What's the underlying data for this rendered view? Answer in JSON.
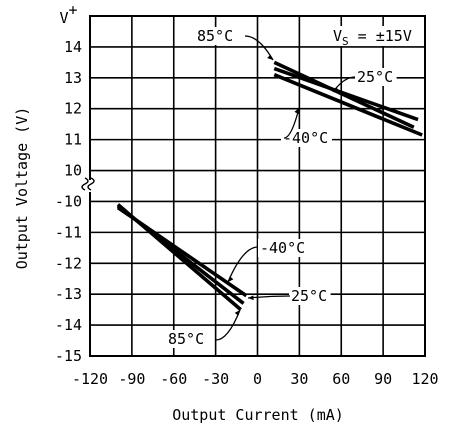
{
  "chart_data": {
    "type": "line",
    "title": "",
    "xlabel": "Output Current (mA)",
    "ylabel": "Output Voltage (V)",
    "xlim": [
      -120,
      120
    ],
    "x_ticks": [
      "-120",
      "-90",
      "-60",
      "-30",
      "0",
      "30",
      "60",
      "90",
      "120"
    ],
    "y_ticks_upper": [
      "V+",
      "14",
      "13",
      "12",
      "11",
      "10"
    ],
    "y_ticks_lower": [
      "-10",
      "-11",
      "-12",
      "-13",
      "-14",
      "-15"
    ],
    "axis_break": "between 10 and -10",
    "grid": true,
    "condition_label": "VS = ±15V",
    "condition_label_parts": {
      "prefix": "V",
      "subscript": "S",
      "suffix": " = ±15V"
    },
    "series": [
      {
        "name": "85°C",
        "segments": [
          {
            "x": [
              -100,
              -12
            ],
            "y": [
              -10.1,
              -13.5
            ]
          },
          {
            "x": [
              12,
              112
            ],
            "y": [
              13.5,
              11.4
            ]
          }
        ]
      },
      {
        "name": "25°C",
        "segments": [
          {
            "x": [
              -100,
              -10
            ],
            "y": [
              -10.15,
              -13.3
            ]
          },
          {
            "x": [
              12,
              115
            ],
            "y": [
              13.3,
              11.65
            ]
          }
        ]
      },
      {
        "name": "-40°C",
        "segments": [
          {
            "x": [
              -100,
              -8
            ],
            "y": [
              -10.2,
              -13.05
            ]
          },
          {
            "x": [
              12,
              118
            ],
            "y": [
              13.1,
              11.15
            ]
          }
        ]
      }
    ]
  }
}
